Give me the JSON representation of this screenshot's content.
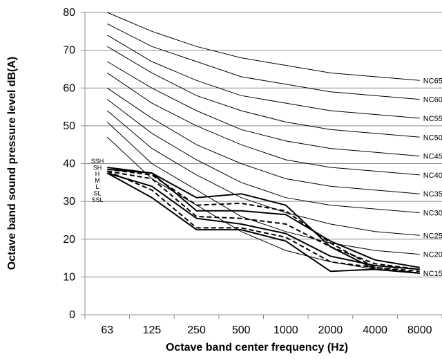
{
  "chart_data": {
    "type": "line",
    "title": "",
    "xlabel": "Octave band center frequency (Hz)",
    "ylabel": "Octave band sound pressure level dB(A)",
    "ylim": [
      0,
      80
    ],
    "yticks": [
      "0",
      "10",
      "20",
      "30",
      "40",
      "50",
      "60",
      "70",
      "80"
    ],
    "categories": [
      "63",
      "125",
      "250",
      "500",
      "1000",
      "2000",
      "4000",
      "8000"
    ],
    "grid": "horizontal",
    "nc_curves": [
      {
        "name": "NC65",
        "values": [
          80,
          75,
          71,
          68,
          66,
          64,
          63,
          62
        ]
      },
      {
        "name": "NC60",
        "values": [
          77,
          71,
          67,
          63,
          61,
          59,
          58,
          57
        ]
      },
      {
        "name": "NC55",
        "values": [
          74,
          67,
          62,
          58,
          56,
          54,
          53,
          52
        ]
      },
      {
        "name": "NC50",
        "values": [
          71,
          64,
          58,
          54,
          51,
          49,
          48,
          47
        ]
      },
      {
        "name": "NC45",
        "values": [
          67,
          60,
          54,
          49,
          46,
          44,
          43,
          42
        ]
      },
      {
        "name": "NC40",
        "values": [
          64,
          56,
          50,
          45,
          41,
          39,
          38,
          37
        ]
      },
      {
        "name": "NC35",
        "values": [
          60,
          52,
          45,
          40,
          36,
          34,
          33,
          32
        ]
      },
      {
        "name": "NC30",
        "values": [
          57,
          48,
          41,
          35,
          31,
          29,
          28,
          27
        ]
      },
      {
        "name": "NC25",
        "values": [
          54,
          44,
          37,
          31,
          27,
          24,
          22,
          21
        ]
      },
      {
        "name": "NC20",
        "values": [
          51,
          40,
          33,
          26,
          22,
          19,
          17,
          16
        ]
      },
      {
        "name": "NC15",
        "values": [
          47,
          36,
          29,
          22,
          17,
          14,
          12,
          11
        ]
      }
    ],
    "measured_labels": [
      "SSH",
      "SH",
      "H",
      "M",
      "L",
      "SL",
      "SSL"
    ],
    "measured_series": [
      {
        "name": "SSH",
        "style": "solid",
        "values": [
          39,
          37.5,
          31,
          32,
          29,
          18,
          12,
          11
        ]
      },
      {
        "name": "SH",
        "style": "dashed",
        "values": [
          38.5,
          37,
          29,
          29.5,
          27.5,
          19,
          12.5,
          11
        ]
      },
      {
        "name": "H",
        "style": "solid",
        "values": [
          38.5,
          37.5,
          27.5,
          27.5,
          26.5,
          19.5,
          14.5,
          12.5
        ]
      },
      {
        "name": "M",
        "style": "dashed",
        "values": [
          38,
          36,
          26,
          25.5,
          24,
          18,
          13.5,
          12
        ]
      },
      {
        "name": "L",
        "style": "solid",
        "values": [
          37.5,
          34,
          25.5,
          24,
          21.5,
          15.5,
          13,
          12
        ]
      },
      {
        "name": "SL",
        "style": "dashed",
        "values": [
          38,
          33,
          23,
          23,
          20.5,
          14,
          12.5,
          11.5
        ]
      },
      {
        "name": "SSL",
        "style": "solid",
        "values": [
          37.5,
          31,
          22.5,
          22.5,
          19.5,
          11.5,
          12,
          11
        ]
      }
    ]
  }
}
